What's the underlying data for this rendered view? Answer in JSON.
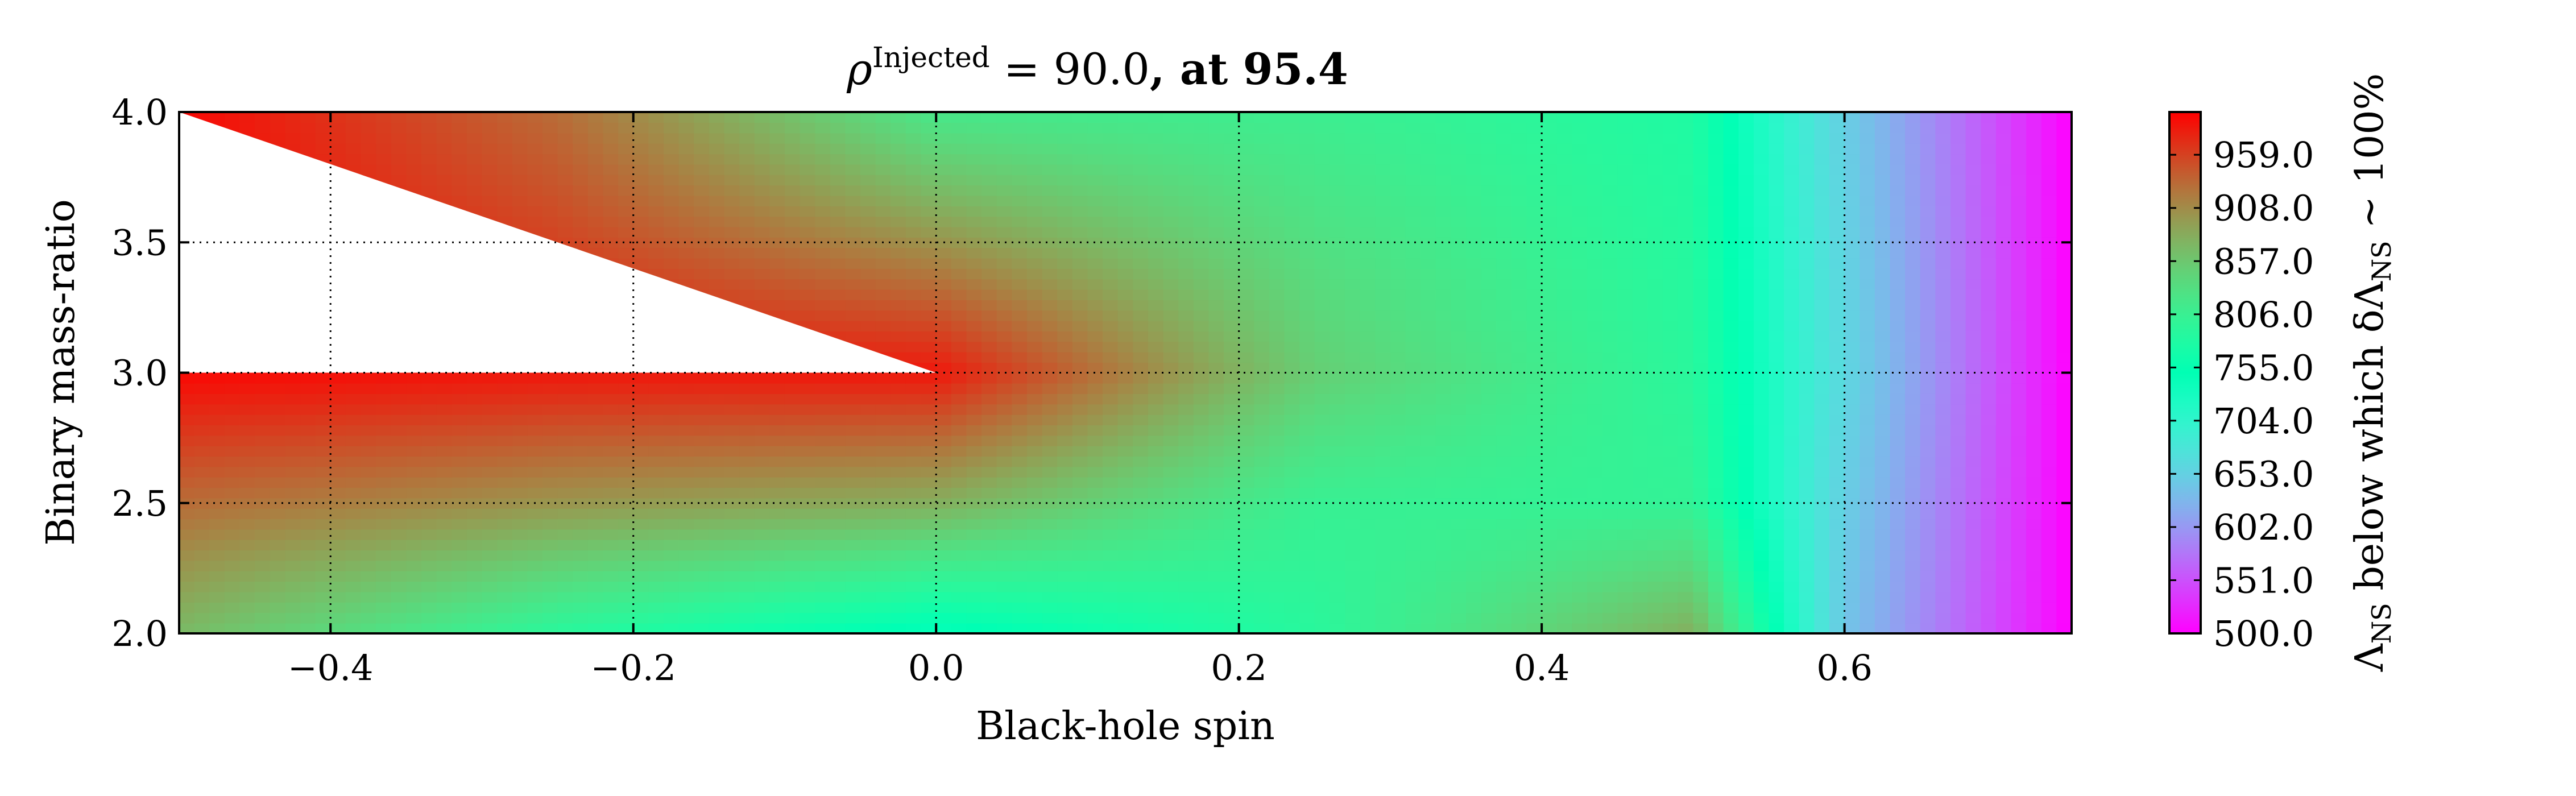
{
  "chart_data": {
    "type": "heatmap",
    "title": {
      "symbol": "ρ",
      "superscript": "Injected",
      "equation": " = 90.0",
      "suffix": ", at 95.4"
    },
    "xlabel": "Black-hole spin",
    "ylabel": "Binary mass-ratio",
    "colorbar_label": {
      "main": "Λ",
      "sub": "NS",
      "mid": " below which δΛ",
      "sub2": "NS",
      "tail": " ~ 100%"
    },
    "xlim": [
      -0.5,
      0.75
    ],
    "ylim": [
      2.0,
      4.0
    ],
    "x_ticks": [
      -0.4,
      -0.2,
      0.0,
      0.2,
      0.4,
      0.6
    ],
    "x_tick_labels": [
      "−0.4",
      "−0.2",
      "0.0",
      "0.2",
      "0.4",
      "0.6"
    ],
    "y_ticks": [
      2.0,
      2.5,
      3.0,
      3.5,
      4.0
    ],
    "y_tick_labels": [
      "2.0",
      "2.5",
      "3.0",
      "3.5",
      "4.0"
    ],
    "grid": true,
    "colormap": "rainbow",
    "clim": [
      500.0,
      1000.0
    ],
    "colorbar_ticks": [
      500.0,
      551.0,
      602.0,
      653.0,
      704.0,
      755.0,
      806.0,
      857.0,
      908.0,
      959.0
    ],
    "colorbar_tick_labels": [
      "500.0",
      "551.0",
      "602.0",
      "653.0",
      "704.0",
      "755.0",
      "806.0",
      "857.0",
      "908.0",
      "959.0"
    ],
    "grid_points": [
      {
        "x": -0.5,
        "y": 2.0,
        "value": 870
      },
      {
        "x": -0.5,
        "y": 2.5,
        "value": 930
      },
      {
        "x": -0.5,
        "y": 3.0,
        "value": 995
      },
      {
        "x": -0.5,
        "y": 4.0,
        "value": 995
      },
      {
        "x": -0.25,
        "y": 2.0,
        "value": 790
      },
      {
        "x": -0.25,
        "y": 2.5,
        "value": 900
      },
      {
        "x": -0.25,
        "y": 3.0,
        "value": 985
      },
      {
        "x": -0.25,
        "y": 4.0,
        "value": 930
      },
      {
        "x": 0.0,
        "y": 2.0,
        "value": 740
      },
      {
        "x": 0.0,
        "y": 2.5,
        "value": 880
      },
      {
        "x": 0.0,
        "y": 3.0,
        "value": 985
      },
      {
        "x": 0.0,
        "y": 4.0,
        "value": 820
      },
      {
        "x": 0.25,
        "y": 2.0,
        "value": 790
      },
      {
        "x": 0.25,
        "y": 2.5,
        "value": 805
      },
      {
        "x": 0.25,
        "y": 3.0,
        "value": 850
      },
      {
        "x": 0.25,
        "y": 4.0,
        "value": 810
      },
      {
        "x": 0.5,
        "y": 2.0,
        "value": 880
      },
      {
        "x": 0.5,
        "y": 2.5,
        "value": 800
      },
      {
        "x": 0.5,
        "y": 3.0,
        "value": 790
      },
      {
        "x": 0.5,
        "y": 4.0,
        "value": 780
      },
      {
        "x": 0.6,
        "y": 2.0,
        "value": 640
      },
      {
        "x": 0.6,
        "y": 2.5,
        "value": 650
      },
      {
        "x": 0.6,
        "y": 3.0,
        "value": 660
      },
      {
        "x": 0.6,
        "y": 4.0,
        "value": 650
      },
      {
        "x": 0.75,
        "y": 2.0,
        "value": 500
      },
      {
        "x": 0.75,
        "y": 2.5,
        "value": 500
      },
      {
        "x": 0.75,
        "y": 3.0,
        "value": 500
      },
      {
        "x": 0.75,
        "y": 4.0,
        "value": 500
      }
    ],
    "blank_region": [
      [
        -0.5,
        4.0
      ],
      [
        0.0,
        3.0
      ],
      [
        -0.5,
        3.0
      ]
    ]
  }
}
